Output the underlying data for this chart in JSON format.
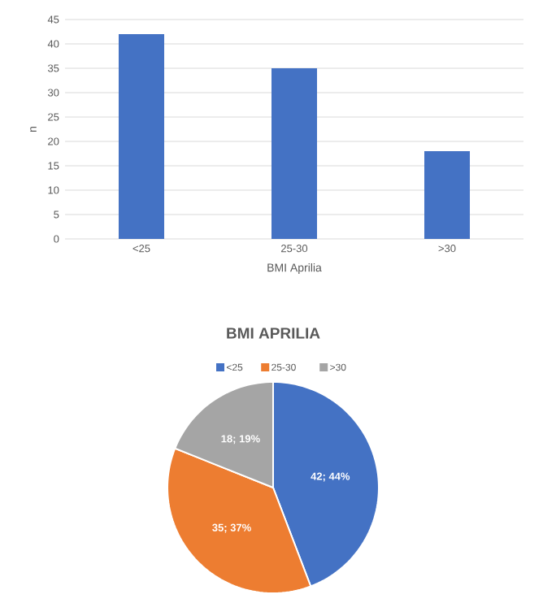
{
  "chart_data": [
    {
      "type": "bar",
      "categories": [
        "<25",
        "25-30",
        ">30"
      ],
      "values": [
        42,
        35,
        18
      ],
      "color": "#4472c4",
      "xlabel": "BMI Aprilia",
      "ylabel": "n",
      "ylim": [
        0,
        45
      ],
      "yticks": [
        0,
        5,
        10,
        15,
        20,
        25,
        30,
        35,
        40,
        45
      ],
      "grid": "y"
    },
    {
      "type": "pie",
      "title": "BMI APRILIA",
      "categories": [
        "<25",
        "25-30",
        ">30"
      ],
      "values": [
        42,
        35,
        18
      ],
      "colors": [
        "#4472c4",
        "#ed7d31",
        "#a5a5a5"
      ],
      "value_labels": [
        "42; 44%",
        "35; 37%",
        "18; 19%"
      ],
      "legend": "top"
    }
  ]
}
